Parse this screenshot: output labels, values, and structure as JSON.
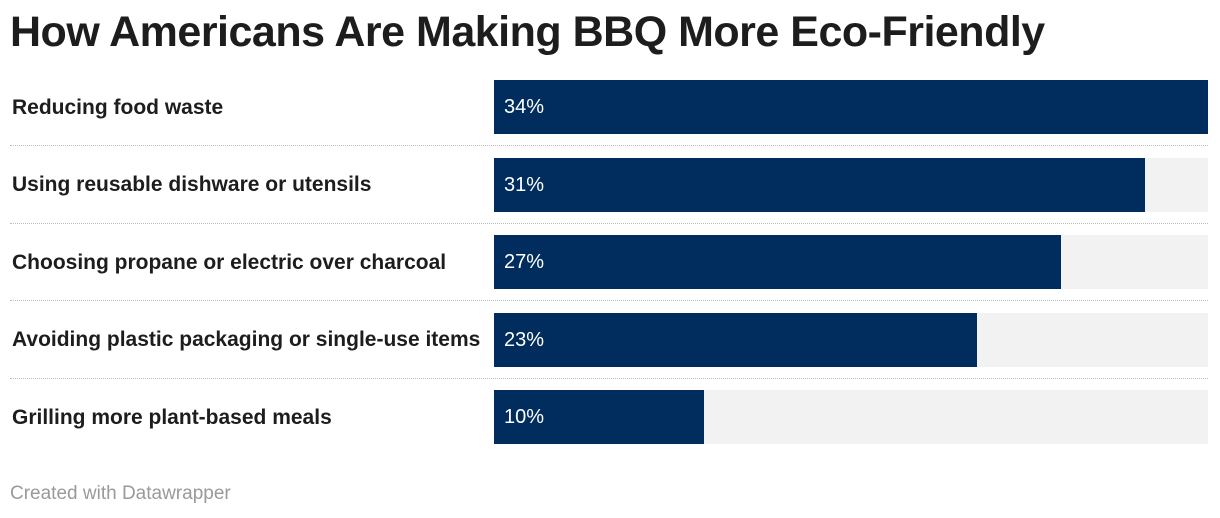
{
  "title": "How Americans Are Making BBQ More Eco-Friendly",
  "footer": "Created with Datawrapper",
  "colors": {
    "bar": "#002d5e",
    "track": "#f2f2f2",
    "text": "#1d1d1d",
    "footer": "#9a9a9a"
  },
  "chart_data": {
    "type": "bar",
    "orientation": "horizontal",
    "title": "How Americans Are Making BBQ More Eco-Friendly",
    "categories": [
      "Reducing food waste",
      "Using reusable dishware or utensils",
      "Choosing propane or electric over charcoal",
      "Avoiding plastic packaging or single-use items",
      "Grilling more plant-based meals"
    ],
    "values": [
      34,
      31,
      27,
      23,
      10
    ],
    "value_labels": [
      "34%",
      "31%",
      "27%",
      "23%",
      "10%"
    ],
    "unit": "%",
    "xlim": [
      0,
      34
    ],
    "grid": false,
    "legend": "none"
  }
}
